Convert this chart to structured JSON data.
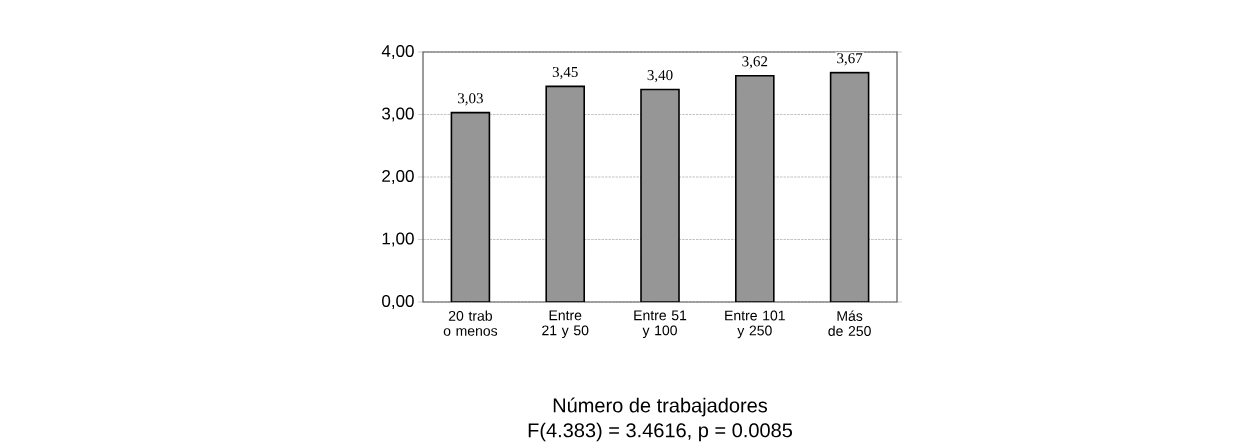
{
  "chart_data": {
    "type": "bar",
    "xlabel": "Número de trabajadores",
    "categories": [
      "20 trab o menos",
      "Entre 21 y 50",
      "Entre 51 y 100",
      "Entre 101 y 250",
      "Más de 250"
    ],
    "values": [
      3.03,
      3.45,
      3.4,
      3.62,
      3.67
    ],
    "value_labels": [
      "3,03",
      "3,45",
      "3,40",
      "3,62",
      "3,67"
    ],
    "color": "#969696",
    "ylim": [
      0,
      4
    ],
    "yticks": [
      {
        "value": 0,
        "label": "0,00"
      },
      {
        "value": 1,
        "label": "1,00"
      },
      {
        "value": 2,
        "label": "2,00"
      },
      {
        "value": 3,
        "label": "3,00"
      },
      {
        "value": 4,
        "label": "4,00"
      }
    ],
    "grid": "y",
    "annotations": [
      "F(4.383) = 3.4616, p = 0.0085"
    ]
  }
}
